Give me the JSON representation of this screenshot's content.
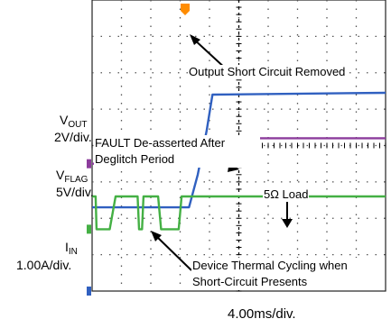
{
  "chart_data": {
    "type": "line",
    "title": "",
    "timebase": "4.00ms/div.",
    "grid": true,
    "divisions": {
      "x": 10,
      "y": 8
    },
    "colors": {
      "vout": "#3060c0",
      "vflag": "#8c3c9c",
      "iin": "#44b044",
      "trigger": "#ff8c00",
      "grid": "#555555"
    },
    "channels": [
      {
        "id": "vout",
        "label": "V",
        "sub": "OUT",
        "scale": "2V/div.",
        "note": "Output Short Circuit Removed"
      },
      {
        "id": "vflag",
        "label": "V",
        "sub": "FLAG",
        "scale": "5V/div.",
        "note": "FAULT De-asserted After Deglitch Period"
      },
      {
        "id": "iin",
        "label": "I",
        "sub": "IN",
        "scale": "1.00A/div.",
        "note": "5Ω Load",
        "note2": "Device Thermal Cycling when Short-Circuit Presents"
      }
    ],
    "series": [
      {
        "name": "V_OUT",
        "color": "vout",
        "x": [
          0,
          3.3,
          3.6,
          3.9,
          4.1,
          10
        ],
        "y": [
          2.3,
          2.3,
          3.2,
          4.4,
          5.4,
          5.45
        ]
      },
      {
        "name": "V_FLAG",
        "color": "vflag",
        "x": [
          0,
          5.65,
          5.65,
          10
        ],
        "y": [
          0.0,
          0.0,
          0.7,
          0.7
        ]
      },
      {
        "name": "I_IN",
        "color": "iin",
        "x": [
          0,
          0.12,
          0.15,
          0.6,
          0.8,
          1.55,
          1.6,
          1.7,
          1.75,
          2.25,
          2.35,
          2.95,
          3.05,
          3.3,
          10
        ],
        "y": [
          0.9,
          0.9,
          0,
          0,
          0.9,
          0.9,
          0,
          0,
          0.9,
          0.9,
          0,
          0,
          0.9,
          0.9,
          0.9
        ]
      }
    ]
  }
}
